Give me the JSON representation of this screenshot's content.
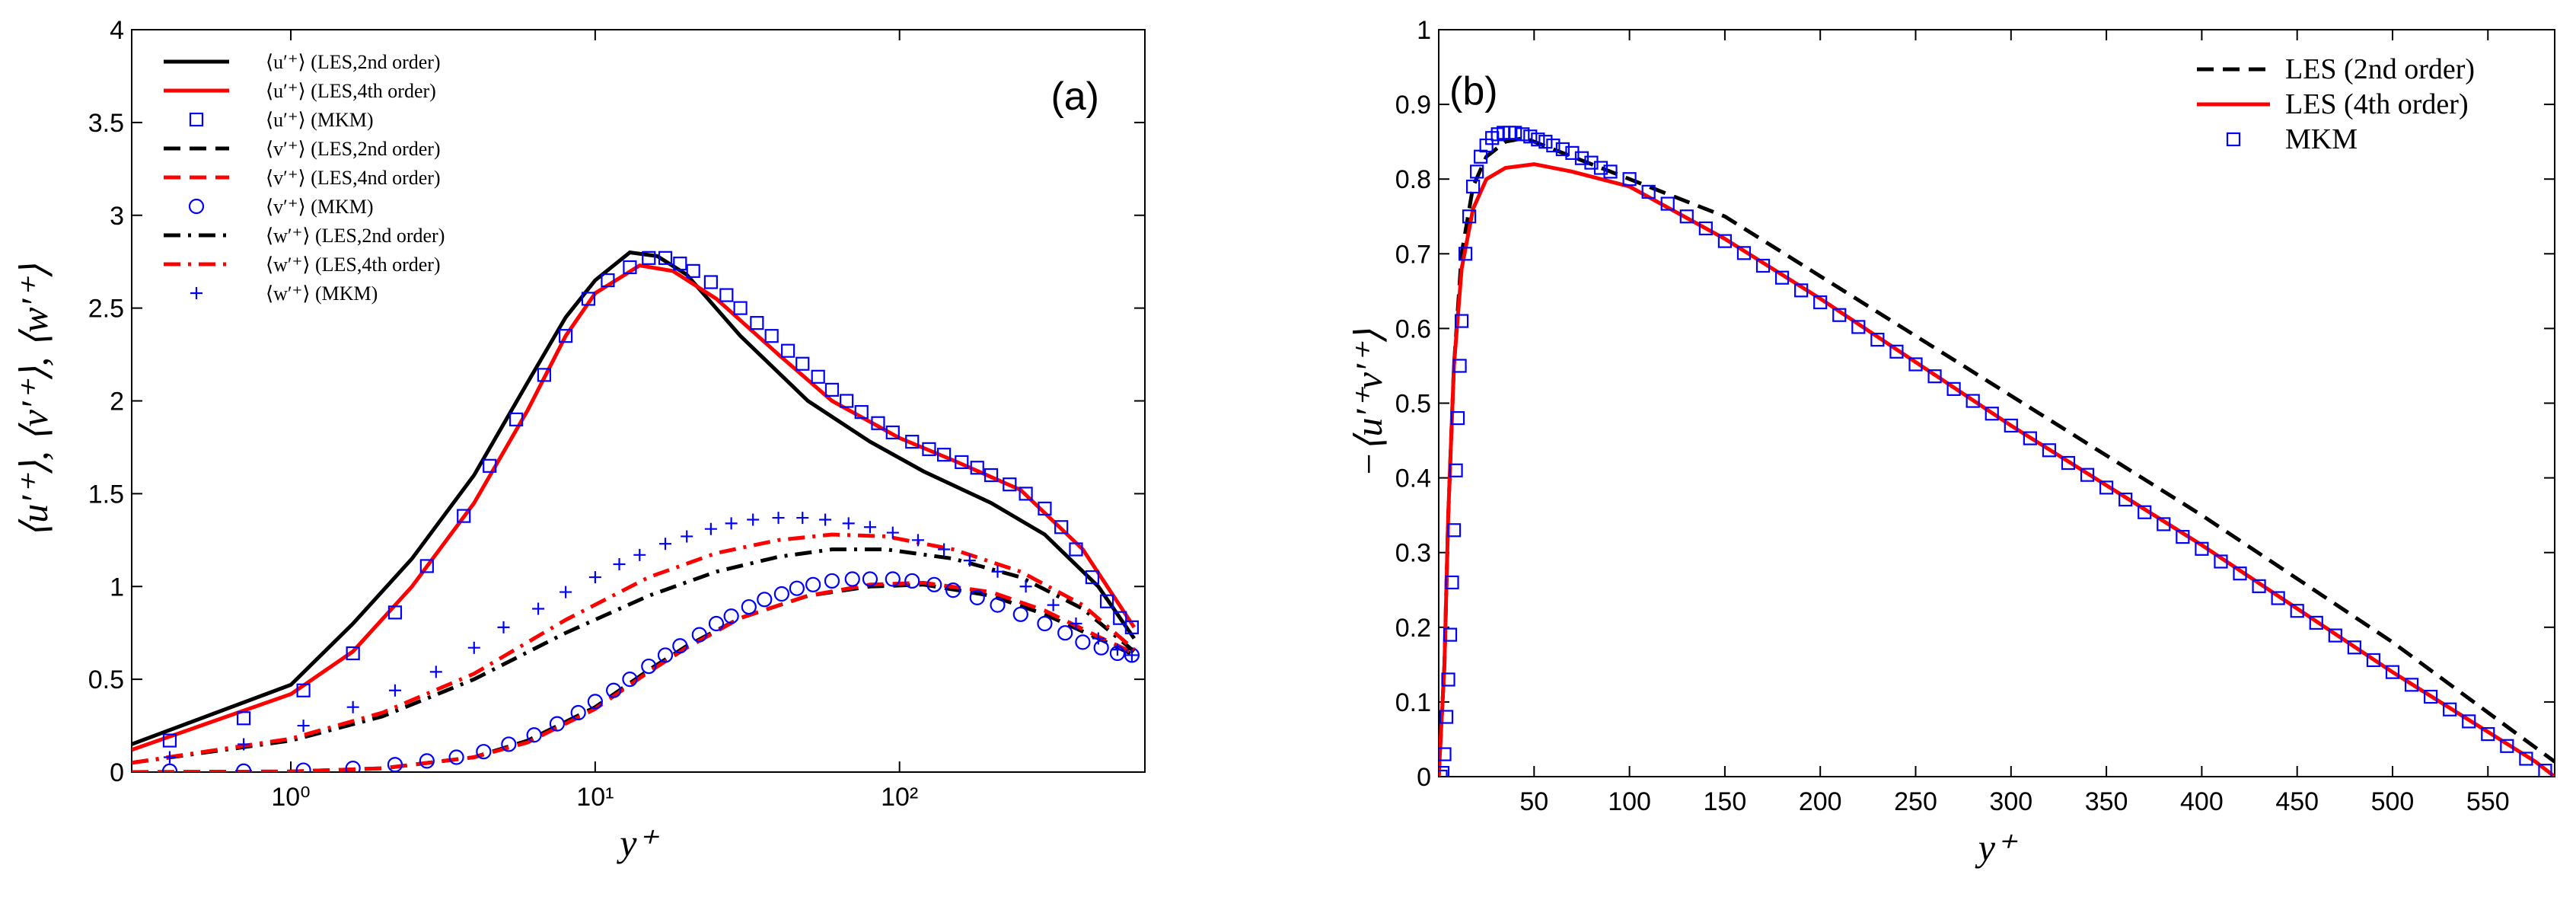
{
  "chart_data": [
    {
      "type": "line",
      "annotation": "(a)",
      "xlabel": "y⁺",
      "ylabel": "⟨u′⁺⟩, ⟨v′⁺⟩, ⟨w′⁺⟩",
      "log_x": true,
      "xlim": [
        0.3,
        640
      ],
      "ylim": [
        0,
        4
      ],
      "xticks": [
        {
          "value": 1,
          "label": "10⁰"
        },
        {
          "value": 10,
          "label": "10¹"
        },
        {
          "value": 100,
          "label": "10²"
        }
      ],
      "yticks": [
        0,
        0.5,
        1,
        1.5,
        2,
        2.5,
        3,
        3.5,
        4
      ],
      "legend": "upper left",
      "series": [
        {
          "name": "⟨u′⁺⟩ (LES,2nd order)",
          "color": "#000000",
          "linestyle": "solid",
          "x": [
            0.3,
            1,
            1.6,
            2.5,
            4,
            6,
            8,
            10,
            13,
            16,
            20,
            30,
            50,
            80,
            120,
            200,
            300,
            450,
            590
          ],
          "values": [
            0.15,
            0.47,
            0.8,
            1.15,
            1.6,
            2.1,
            2.45,
            2.65,
            2.8,
            2.78,
            2.68,
            2.35,
            2.0,
            1.78,
            1.62,
            1.45,
            1.28,
            1.0,
            0.72
          ]
        },
        {
          "name": "⟨u′⁺⟩ (LES,4th order)",
          "color": "#ff0000",
          "linestyle": "solid",
          "x": [
            0.3,
            1,
            1.6,
            2.5,
            4,
            6,
            8,
            10,
            14,
            18,
            25,
            40,
            60,
            100,
            150,
            250,
            400,
            590
          ],
          "values": [
            0.12,
            0.42,
            0.65,
            1.0,
            1.45,
            1.95,
            2.35,
            2.58,
            2.73,
            2.7,
            2.55,
            2.25,
            2.0,
            1.8,
            1.68,
            1.52,
            1.2,
            0.78
          ]
        },
        {
          "name": "⟨u′⁺⟩ (MKM)",
          "color": "#0000ff",
          "marker": "square",
          "x": [
            0.4,
            0.7,
            1.1,
            1.6,
            2.2,
            2.8,
            3.7,
            4.5,
            5.5,
            6.8,
            8,
            9.5,
            11,
            13,
            15,
            17,
            19,
            21,
            24,
            27,
            30,
            34,
            38,
            43,
            48,
            54,
            60,
            67,
            75,
            85,
            95,
            110,
            125,
            140,
            160,
            180,
            200,
            230,
            260,
            300,
            340,
            380,
            430,
            480,
            530,
            580
          ],
          "values": [
            0.17,
            0.29,
            0.44,
            0.64,
            0.86,
            1.11,
            1.38,
            1.65,
            1.9,
            2.14,
            2.35,
            2.55,
            2.65,
            2.72,
            2.77,
            2.77,
            2.74,
            2.7,
            2.64,
            2.57,
            2.5,
            2.42,
            2.35,
            2.27,
            2.2,
            2.13,
            2.06,
            2.0,
            1.94,
            1.88,
            1.83,
            1.78,
            1.74,
            1.71,
            1.67,
            1.64,
            1.6,
            1.55,
            1.5,
            1.42,
            1.32,
            1.2,
            1.05,
            0.92,
            0.83,
            0.78
          ]
        },
        {
          "name": "⟨v′⁺⟩ (LES,2nd order)",
          "color": "#000000",
          "linestyle": "dashed",
          "x": [
            0.3,
            1,
            2,
            4,
            6,
            10,
            15,
            20,
            30,
            50,
            80,
            120,
            200,
            300,
            450,
            590
          ],
          "values": [
            0.0,
            0.003,
            0.02,
            0.08,
            0.17,
            0.35,
            0.55,
            0.68,
            0.83,
            0.95,
            1.0,
            1.01,
            0.95,
            0.85,
            0.72,
            0.63
          ]
        },
        {
          "name": "⟨v′⁺⟩ (LES,4nd order)",
          "color": "#ff0000",
          "linestyle": "dashed",
          "x": [
            0.3,
            1,
            2,
            4,
            6,
            10,
            15,
            20,
            30,
            50,
            80,
            120,
            200,
            300,
            450,
            590
          ],
          "values": [
            0.0,
            0.003,
            0.02,
            0.08,
            0.16,
            0.34,
            0.54,
            0.67,
            0.83,
            0.95,
            1.01,
            1.02,
            0.97,
            0.87,
            0.73,
            0.64
          ]
        },
        {
          "name": "⟨v′⁺⟩ (MKM)",
          "color": "#0000ff",
          "marker": "circle",
          "x": [
            0.4,
            0.7,
            1.1,
            1.6,
            2.2,
            2.8,
            3.5,
            4.3,
            5.2,
            6.3,
            7.5,
            8.8,
            10,
            11.5,
            13,
            15,
            17,
            19,
            22,
            25,
            28,
            32,
            36,
            41,
            46,
            52,
            60,
            70,
            80,
            95,
            110,
            130,
            150,
            180,
            210,
            250,
            300,
            350,
            400,
            460,
            520,
            580
          ],
          "values": [
            0.005,
            0.005,
            0.01,
            0.02,
            0.04,
            0.06,
            0.08,
            0.11,
            0.15,
            0.2,
            0.26,
            0.32,
            0.38,
            0.44,
            0.5,
            0.57,
            0.63,
            0.68,
            0.74,
            0.8,
            0.84,
            0.89,
            0.93,
            0.96,
            0.99,
            1.01,
            1.03,
            1.04,
            1.04,
            1.04,
            1.03,
            1.01,
            0.98,
            0.94,
            0.9,
            0.85,
            0.8,
            0.75,
            0.7,
            0.67,
            0.64,
            0.63
          ]
        },
        {
          "name": "⟨w′⁺⟩ (LES,2nd order)",
          "color": "#000000",
          "linestyle": "dashdot",
          "x": [
            0.3,
            1,
            2,
            4,
            8,
            15,
            25,
            40,
            60,
            90,
            150,
            250,
            400,
            590
          ],
          "values": [
            0.05,
            0.17,
            0.3,
            0.5,
            0.75,
            0.95,
            1.08,
            1.16,
            1.2,
            1.2,
            1.15,
            1.05,
            0.88,
            0.65
          ]
        },
        {
          "name": "⟨w′⁺⟩ (LES,4th order)",
          "color": "#ff0000",
          "linestyle": "dashdot",
          "x": [
            0.3,
            1,
            2,
            4,
            8,
            15,
            25,
            40,
            60,
            90,
            150,
            250,
            400,
            590
          ],
          "values": [
            0.05,
            0.18,
            0.32,
            0.53,
            0.82,
            1.05,
            1.18,
            1.25,
            1.28,
            1.27,
            1.2,
            1.08,
            0.9,
            0.66
          ]
        },
        {
          "name": "⟨w′⁺⟩ (MKM)",
          "color": "#0000ff",
          "marker": "plus",
          "x": [
            0.4,
            0.7,
            1.1,
            1.6,
            2.2,
            3,
            4,
            5,
            6.5,
            8,
            10,
            12,
            14,
            17,
            20,
            24,
            28,
            33,
            40,
            48,
            57,
            68,
            80,
            95,
            115,
            140,
            170,
            210,
            260,
            320,
            380,
            450,
            520,
            580
          ],
          "values": [
            0.08,
            0.15,
            0.25,
            0.35,
            0.44,
            0.54,
            0.67,
            0.78,
            0.88,
            0.97,
            1.05,
            1.12,
            1.17,
            1.23,
            1.27,
            1.31,
            1.34,
            1.36,
            1.37,
            1.37,
            1.36,
            1.34,
            1.32,
            1.29,
            1.25,
            1.2,
            1.14,
            1.08,
            1.0,
            0.9,
            0.8,
            0.72,
            0.66,
            0.63
          ]
        }
      ]
    },
    {
      "type": "line",
      "annotation": "(b)",
      "xlabel": "y⁺",
      "ylabel": "−⟨u′⁺v′⁺⟩",
      "xlim": [
        0,
        585
      ],
      "ylim": [
        0,
        1
      ],
      "xticks": [
        50,
        100,
        150,
        200,
        250,
        300,
        350,
        400,
        450,
        500,
        550
      ],
      "yticks": [
        0,
        0.1,
        0.2,
        0.3,
        0.4,
        0.5,
        0.6,
        0.7,
        0.8,
        0.9,
        1
      ],
      "legend": "upper right",
      "series": [
        {
          "name": "LES (2nd order)",
          "color": "#000000",
          "linestyle": "dashed",
          "x": [
            0,
            3,
            5,
            8,
            12,
            18,
            25,
            35,
            45,
            60,
            100,
            150,
            200,
            300,
            400,
            500,
            585
          ],
          "values": [
            0,
            0.15,
            0.35,
            0.55,
            0.7,
            0.79,
            0.83,
            0.85,
            0.855,
            0.84,
            0.8,
            0.75,
            0.67,
            0.51,
            0.35,
            0.18,
            0.02
          ]
        },
        {
          "name": "LES (4th order)",
          "color": "#ff0000",
          "linestyle": "solid",
          "x": [
            0,
            3,
            5,
            8,
            12,
            18,
            25,
            35,
            50,
            70,
            100,
            150,
            200,
            300,
            400,
            500,
            575,
            585
          ],
          "values": [
            0,
            0.15,
            0.35,
            0.55,
            0.68,
            0.76,
            0.8,
            0.815,
            0.82,
            0.81,
            0.79,
            0.72,
            0.64,
            0.47,
            0.31,
            0.14,
            0.02,
            0
          ]
        },
        {
          "name": "MKM",
          "color": "#0000ff",
          "marker": "square",
          "x": [
            1,
            2,
            3,
            4,
            5,
            6,
            7,
            8,
            9,
            10,
            11,
            12,
            14,
            16,
            18,
            20,
            22,
            25,
            28,
            31,
            34,
            37,
            40,
            44,
            48,
            52,
            56,
            60,
            65,
            70,
            75,
            80,
            85,
            90,
            100,
            110,
            120,
            130,
            140,
            150,
            160,
            170,
            180,
            190,
            200,
            210,
            220,
            230,
            240,
            250,
            260,
            270,
            280,
            290,
            300,
            310,
            320,
            330,
            340,
            350,
            360,
            370,
            380,
            390,
            400,
            410,
            420,
            430,
            440,
            450,
            460,
            470,
            480,
            490,
            500,
            510,
            520,
            530,
            540,
            550,
            560,
            570,
            580
          ],
          "values": [
            0.0,
            0.005,
            0.03,
            0.08,
            0.13,
            0.19,
            0.26,
            0.33,
            0.41,
            0.48,
            0.55,
            0.61,
            0.7,
            0.75,
            0.79,
            0.81,
            0.83,
            0.845,
            0.855,
            0.86,
            0.862,
            0.862,
            0.862,
            0.86,
            0.857,
            0.853,
            0.85,
            0.845,
            0.84,
            0.835,
            0.828,
            0.822,
            0.815,
            0.81,
            0.8,
            0.783,
            0.767,
            0.75,
            0.734,
            0.717,
            0.701,
            0.684,
            0.668,
            0.651,
            0.635,
            0.618,
            0.602,
            0.585,
            0.569,
            0.552,
            0.536,
            0.519,
            0.503,
            0.486,
            0.47,
            0.453,
            0.437,
            0.42,
            0.404,
            0.387,
            0.371,
            0.354,
            0.338,
            0.321,
            0.305,
            0.288,
            0.272,
            0.255,
            0.239,
            0.222,
            0.206,
            0.189,
            0.173,
            0.156,
            0.14,
            0.123,
            0.107,
            0.09,
            0.074,
            0.057,
            0.041,
            0.024,
            0.008
          ]
        }
      ]
    }
  ]
}
